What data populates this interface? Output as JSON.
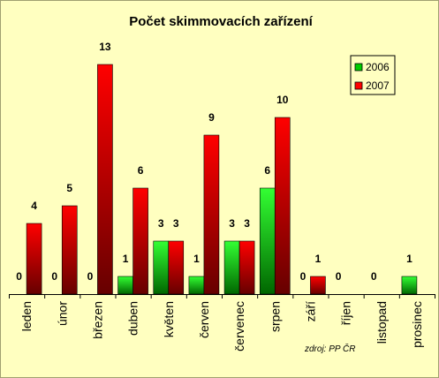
{
  "chart_data": {
    "type": "bar",
    "title": "Počet skimmovacích zařízení",
    "categories": [
      "leden",
      "únor",
      "březen",
      "duben",
      "květen",
      "červen",
      "červenec",
      "srpen",
      "září",
      "říjen",
      "listopad",
      "prosinec"
    ],
    "series": [
      {
        "name": "2006",
        "color": "#00cc00",
        "values": [
          0,
          0,
          0,
          1,
          3,
          1,
          3,
          6,
          0,
          0,
          0,
          1
        ]
      },
      {
        "name": "2007",
        "color": "#ff0000",
        "values": [
          4,
          5,
          13,
          6,
          3,
          9,
          3,
          10,
          1,
          null,
          null,
          null
        ]
      }
    ],
    "ylim": [
      0,
      13
    ],
    "grid": false,
    "legend_position": "top-right",
    "source": "zdroj: PP ČR"
  }
}
